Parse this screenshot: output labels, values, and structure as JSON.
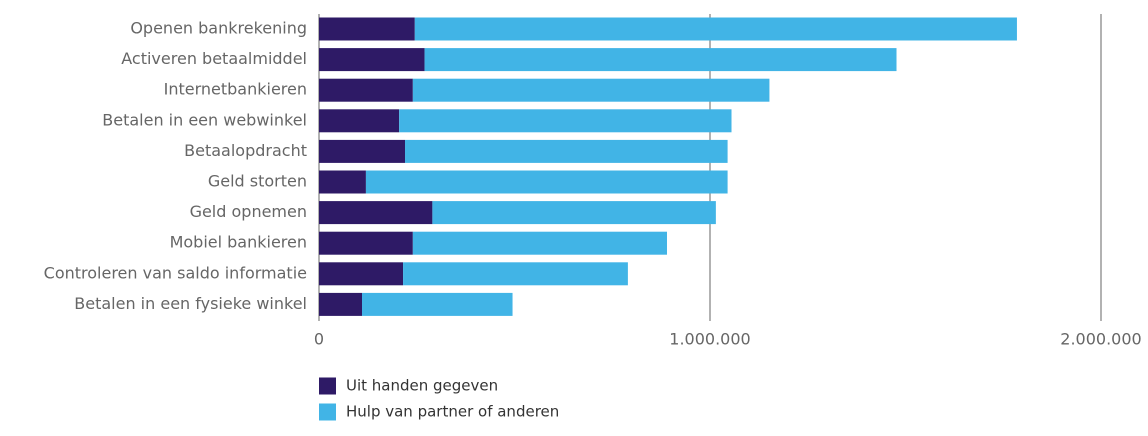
{
  "chart_data": {
    "type": "bar",
    "orientation": "horizontal",
    "stacked": true,
    "categories": [
      "Openen bankrekening",
      "Activeren betaalmiddel",
      "Internetbankieren",
      "Betalen in een webwinkel",
      "Betaalopdracht",
      "Geld storten",
      "Geld opnemen",
      "Mobiel bankieren",
      "Controleren van saldo informatie",
      "Betalen in een fysieke winkel"
    ],
    "series": [
      {
        "name": "Uit handen gegeven",
        "color": "#2e1a66",
        "values": [
          245000,
          270000,
          240000,
          205000,
          220000,
          120000,
          290000,
          240000,
          215000,
          110000
        ]
      },
      {
        "name": "Hulp van partner of anderen",
        "color": "#41b4e6",
        "values": [
          1540000,
          1207000,
          912000,
          850000,
          825000,
          925000,
          725000,
          650000,
          575000,
          385000
        ]
      }
    ],
    "xlim": [
      0,
      2000000
    ],
    "x_ticks": [
      0,
      1000000,
      2000000
    ],
    "x_tick_labels": [
      "0",
      "1.000.000",
      "2.000.000"
    ],
    "grid": true,
    "legend_position": "bottom"
  }
}
